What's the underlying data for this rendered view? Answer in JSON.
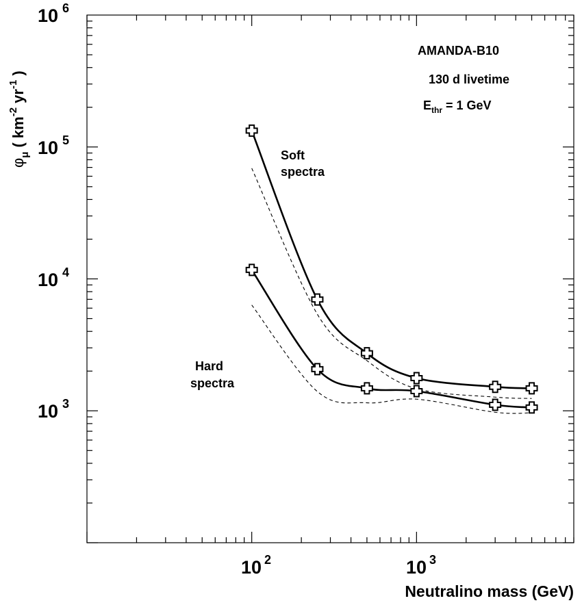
{
  "chart_data": {
    "type": "line",
    "title": "",
    "xlabel": "Neutralino mass (GeV)",
    "ylabel": "φμ ( km-2 yr-1 )",
    "ylabel_parts": {
      "symbol": "φ",
      "sub": "μ",
      "open": "( km",
      "sup1": "-2",
      "mid": " yr",
      "sup2": "-1",
      "close": " )"
    },
    "xscale": "log",
    "yscale": "log",
    "xlim": [
      10,
      9000
    ],
    "ylim": [
      100,
      1000000
    ],
    "x_ticks": [
      {
        "value": 100,
        "base": "10",
        "exp": "2"
      },
      {
        "value": 1000,
        "base": "10",
        "exp": "3"
      }
    ],
    "y_ticks": [
      {
        "value": 1000,
        "base": "10",
        "exp": "3"
      },
      {
        "value": 10000,
        "base": "10",
        "exp": "4"
      },
      {
        "value": 100000,
        "base": "10",
        "exp": "5"
      },
      {
        "value": 1000000,
        "base": "10",
        "exp": "6"
      }
    ],
    "annotations": {
      "experiment": "AMANDA-B10",
      "livetime": "130 d livetime",
      "threshold_main": "E",
      "threshold_sub": "thr",
      "threshold_rest": " = 1 GeV",
      "soft_line1": "Soft",
      "soft_line2": "spectra",
      "hard_line1": "Hard",
      "hard_line2": "spectra"
    },
    "series": [
      {
        "name": "Soft spectra",
        "style": "solid",
        "marker": "cross",
        "x": [
          100,
          250,
          500,
          1000,
          3000,
          5000
        ],
        "y": [
          133000,
          6980,
          2730,
          1770,
          1520,
          1480
        ]
      },
      {
        "name": "Hard spectra",
        "style": "solid",
        "marker": "cross",
        "x": [
          100,
          250,
          500,
          1000,
          3000,
          5000
        ],
        "y": [
          11700,
          2070,
          1480,
          1410,
          1110,
          1060
        ]
      },
      {
        "name": "Soft spectra (dashed)",
        "style": "dashed",
        "marker": "none",
        "x": [
          100,
          250,
          500,
          1000,
          3000,
          5000
        ],
        "y": [
          69000,
          5400,
          2400,
          1470,
          1270,
          1240
        ]
      },
      {
        "name": "Hard spectra (dashed)",
        "style": "dashed",
        "marker": "none",
        "x": [
          100,
          250,
          500,
          1000,
          3000,
          5000
        ],
        "y": [
          6340,
          1400,
          1150,
          1225,
          975,
          965
        ]
      }
    ]
  }
}
